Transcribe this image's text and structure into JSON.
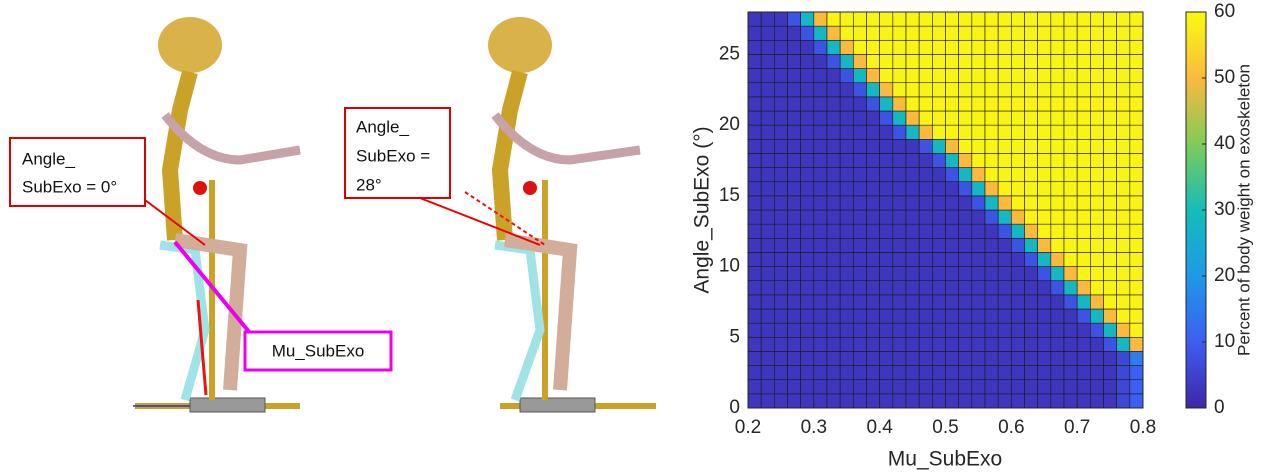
{
  "figure_labels": {
    "left_callout": [
      "Angle_",
      "SubExo = 0°"
    ],
    "middle_callout": [
      "Angle_",
      "SubExo =",
      "28°"
    ],
    "mu_callout": "Mu_SubExo"
  },
  "chart_data": {
    "type": "heatmap",
    "xlabel": "Mu_SubExo",
    "ylabel": "Angle_SubExo (°)",
    "colorbar_label": "Percent of body weight on exoskeleton",
    "xlim": [
      0.2,
      0.8
    ],
    "xticks": [
      0.2,
      0.3,
      0.4,
      0.5,
      0.6,
      0.7,
      0.8
    ],
    "ylim": [
      0,
      28
    ],
    "yticks": [
      0,
      5,
      10,
      15,
      20,
      25
    ],
    "clim": [
      0,
      60
    ],
    "cticks": [
      0,
      10,
      20,
      30,
      40,
      50,
      60
    ],
    "colormap": [
      "#3e26a8",
      "#3d5ef2",
      "#1e99e8",
      "#13beb8",
      "#80cb58",
      "#fbba3d",
      "#f9fb0e"
    ],
    "values": [
      [
        3,
        3,
        3,
        3,
        3,
        3,
        3,
        3,
        3,
        3,
        3,
        3,
        3,
        3,
        3,
        3,
        3,
        3,
        3,
        3,
        3,
        3,
        3,
        3,
        3,
        3,
        3,
        3,
        6,
        10
      ],
      [
        3,
        3,
        3,
        3,
        3,
        3,
        3,
        3,
        3,
        3,
        3,
        3,
        3,
        3,
        3,
        3,
        3,
        3,
        3,
        3,
        3,
        3,
        3,
        3,
        3,
        3,
        3,
        3,
        6,
        10
      ],
      [
        3,
        3,
        3,
        3,
        3,
        3,
        3,
        3,
        3,
        3,
        3,
        3,
        3,
        3,
        3,
        3,
        3,
        3,
        3,
        3,
        3,
        3,
        3,
        3,
        3,
        3,
        3,
        3,
        6,
        10
      ],
      [
        3,
        3,
        3,
        3,
        3,
        3,
        3,
        3,
        3,
        3,
        3,
        3,
        3,
        3,
        3,
        3,
        3,
        3,
        3,
        3,
        3,
        3,
        3,
        3,
        3,
        3,
        3,
        3,
        6,
        15
      ],
      [
        3,
        3,
        3,
        3,
        3,
        3,
        3,
        3,
        3,
        3,
        3,
        3,
        3,
        3,
        3,
        3,
        3,
        3,
        3,
        3,
        3,
        3,
        3,
        3,
        3,
        3,
        3,
        8,
        28,
        50
      ],
      [
        3,
        3,
        3,
        3,
        3,
        3,
        3,
        3,
        3,
        3,
        3,
        3,
        3,
        3,
        3,
        3,
        3,
        3,
        3,
        3,
        3,
        3,
        3,
        3,
        3,
        3,
        8,
        28,
        50,
        59
      ],
      [
        3,
        3,
        3,
        3,
        3,
        3,
        3,
        3,
        3,
        3,
        3,
        3,
        3,
        3,
        3,
        3,
        3,
        3,
        3,
        3,
        3,
        3,
        3,
        3,
        3,
        8,
        28,
        50,
        59,
        59
      ],
      [
        3,
        3,
        3,
        3,
        3,
        3,
        3,
        3,
        3,
        3,
        3,
        3,
        3,
        3,
        3,
        3,
        3,
        3,
        3,
        3,
        3,
        3,
        3,
        3,
        8,
        28,
        50,
        59,
        59,
        59
      ],
      [
        3,
        3,
        3,
        3,
        3,
        3,
        3,
        3,
        3,
        3,
        3,
        3,
        3,
        3,
        3,
        3,
        3,
        3,
        3,
        3,
        3,
        3,
        3,
        8,
        28,
        50,
        59,
        59,
        59,
        59
      ],
      [
        3,
        3,
        3,
        3,
        3,
        3,
        3,
        3,
        3,
        3,
        3,
        3,
        3,
        3,
        3,
        3,
        3,
        3,
        3,
        3,
        3,
        3,
        8,
        28,
        50,
        59,
        59,
        59,
        59,
        59
      ],
      [
        3,
        3,
        3,
        3,
        3,
        3,
        3,
        3,
        3,
        3,
        3,
        3,
        3,
        3,
        3,
        3,
        3,
        3,
        3,
        3,
        3,
        8,
        28,
        50,
        59,
        59,
        59,
        59,
        59,
        59
      ],
      [
        3,
        3,
        3,
        3,
        3,
        3,
        3,
        3,
        3,
        3,
        3,
        3,
        3,
        3,
        3,
        3,
        3,
        3,
        3,
        3,
        8,
        28,
        50,
        59,
        59,
        59,
        59,
        59,
        59,
        59
      ],
      [
        3,
        3,
        3,
        3,
        3,
        3,
        3,
        3,
        3,
        3,
        3,
        3,
        3,
        3,
        3,
        3,
        3,
        3,
        3,
        8,
        28,
        50,
        59,
        59,
        59,
        59,
        59,
        59,
        59,
        59
      ],
      [
        3,
        3,
        3,
        3,
        3,
        3,
        3,
        3,
        3,
        3,
        3,
        3,
        3,
        3,
        3,
        3,
        3,
        3,
        8,
        28,
        50,
        59,
        59,
        59,
        59,
        59,
        59,
        59,
        59,
        59
      ],
      [
        3,
        3,
        3,
        3,
        3,
        3,
        3,
        3,
        3,
        3,
        3,
        3,
        3,
        3,
        3,
        3,
        3,
        8,
        28,
        50,
        59,
        59,
        59,
        59,
        59,
        59,
        59,
        59,
        59,
        59
      ],
      [
        3,
        3,
        3,
        3,
        3,
        3,
        3,
        3,
        3,
        3,
        3,
        3,
        3,
        3,
        3,
        3,
        8,
        28,
        50,
        59,
        59,
        59,
        59,
        59,
        59,
        59,
        59,
        59,
        59,
        59
      ],
      [
        3,
        3,
        3,
        3,
        3,
        3,
        3,
        3,
        3,
        3,
        3,
        3,
        3,
        3,
        3,
        8,
        28,
        50,
        59,
        59,
        59,
        59,
        59,
        59,
        59,
        59,
        59,
        59,
        59,
        59
      ],
      [
        3,
        3,
        3,
        3,
        3,
        3,
        3,
        3,
        3,
        3,
        3,
        3,
        3,
        3,
        8,
        28,
        50,
        59,
        59,
        59,
        59,
        59,
        59,
        59,
        59,
        59,
        59,
        59,
        59,
        59
      ],
      [
        3,
        3,
        3,
        3,
        3,
        3,
        3,
        3,
        3,
        3,
        3,
        3,
        3,
        8,
        28,
        50,
        59,
        59,
        59,
        59,
        59,
        59,
        59,
        59,
        59,
        59,
        59,
        59,
        59,
        59
      ],
      [
        3,
        3,
        3,
        3,
        3,
        3,
        3,
        3,
        3,
        3,
        3,
        8,
        28,
        50,
        59,
        59,
        59,
        59,
        59,
        59,
        59,
        59,
        59,
        59,
        59,
        59,
        59,
        59,
        59,
        59
      ],
      [
        3,
        3,
        3,
        3,
        3,
        3,
        3,
        3,
        3,
        3,
        8,
        28,
        50,
        59,
        59,
        59,
        59,
        59,
        59,
        59,
        59,
        59,
        59,
        59,
        59,
        59,
        59,
        59,
        59,
        59
      ],
      [
        3,
        3,
        3,
        3,
        3,
        3,
        3,
        3,
        3,
        8,
        28,
        50,
        59,
        59,
        59,
        59,
        59,
        59,
        59,
        59,
        59,
        59,
        59,
        59,
        59,
        59,
        59,
        59,
        59,
        59
      ],
      [
        3,
        3,
        3,
        3,
        3,
        3,
        3,
        3,
        8,
        28,
        50,
        59,
        59,
        59,
        59,
        59,
        59,
        59,
        59,
        59,
        59,
        59,
        59,
        59,
        59,
        59,
        59,
        59,
        59,
        59
      ],
      [
        3,
        3,
        3,
        3,
        3,
        3,
        3,
        8,
        28,
        50,
        59,
        59,
        59,
        59,
        59,
        59,
        59,
        59,
        59,
        59,
        59,
        59,
        59,
        59,
        59,
        59,
        59,
        59,
        59,
        59
      ],
      [
        3,
        3,
        3,
        3,
        3,
        3,
        8,
        28,
        50,
        59,
        59,
        59,
        59,
        59,
        59,
        59,
        59,
        59,
        59,
        59,
        59,
        59,
        59,
        59,
        59,
        59,
        59,
        59,
        59,
        59
      ],
      [
        3,
        3,
        3,
        3,
        3,
        8,
        28,
        50,
        59,
        59,
        59,
        59,
        59,
        59,
        59,
        59,
        59,
        59,
        59,
        59,
        59,
        59,
        59,
        59,
        59,
        59,
        59,
        59,
        59,
        59
      ],
      [
        3,
        3,
        3,
        3,
        8,
        28,
        50,
        59,
        59,
        59,
        59,
        59,
        59,
        59,
        59,
        59,
        59,
        59,
        59,
        59,
        59,
        59,
        59,
        59,
        59,
        59,
        59,
        59,
        59,
        59
      ],
      [
        3,
        3,
        3,
        8,
        28,
        50,
        59,
        59,
        59,
        59,
        59,
        59,
        59,
        59,
        59,
        59,
        59,
        59,
        59,
        59,
        59,
        59,
        59,
        59,
        59,
        59,
        59,
        59,
        59,
        59
      ]
    ]
  }
}
